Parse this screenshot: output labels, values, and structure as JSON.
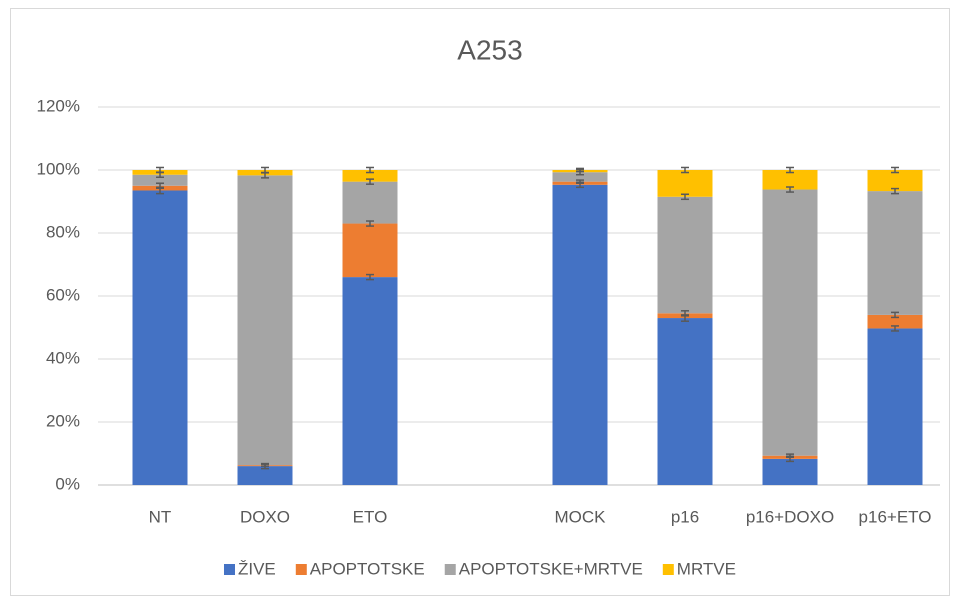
{
  "chart_data": {
    "type": "stacked_bar",
    "title": "A253",
    "categories": [
      "NT",
      "DOXO",
      "ETO",
      null,
      "MOCK",
      "p16",
      "p16+DOXO",
      "p16+ETO"
    ],
    "series": [
      {
        "name": "ŽIVE",
        "color": "#4472c4",
        "values": [
          93.5,
          6,
          66,
          null,
          95.3,
          53,
          8.3,
          49.7
        ],
        "errors": [
          1,
          0.8,
          0.8,
          null,
          0.8,
          1,
          0.8,
          0.8
        ]
      },
      {
        "name": "APOPTOTSKE",
        "color": "#ed7d31",
        "values": [
          1.5,
          0.3,
          17,
          null,
          1,
          1.5,
          1,
          4.3
        ],
        "errors": [
          0.8,
          0.3,
          0.8,
          null,
          0.5,
          0.8,
          0.5,
          0.8
        ]
      },
      {
        "name": "APOPTOTSKE+MRTVE",
        "color": "#a5a5a5",
        "values": [
          3.5,
          92,
          13.3,
          null,
          3,
          37,
          84.5,
          39.3
        ],
        "errors": [
          0.8,
          0.8,
          0.8,
          null,
          0.8,
          0.8,
          0.8,
          0.8
        ]
      },
      {
        "name": "MRTVE",
        "color": "#ffc000",
        "values": [
          1.5,
          1.7,
          3.7,
          null,
          0.7,
          8.5,
          6.2,
          6.7
        ],
        "errors": [
          0.8,
          0.8,
          0.8,
          null,
          0.5,
          0.8,
          0.8,
          0.8
        ]
      }
    ],
    "ylim": [
      0,
      120
    ],
    "yticks": [
      {
        "value": 0,
        "label": "0%"
      },
      {
        "value": 20,
        "label": "20%"
      },
      {
        "value": 40,
        "label": "40%"
      },
      {
        "value": 60,
        "label": "60%"
      },
      {
        "value": 80,
        "label": "80%"
      },
      {
        "value": 100,
        "label": "100%"
      },
      {
        "value": 120,
        "label": "120%"
      }
    ],
    "grid": true,
    "legend": "bottom"
  }
}
